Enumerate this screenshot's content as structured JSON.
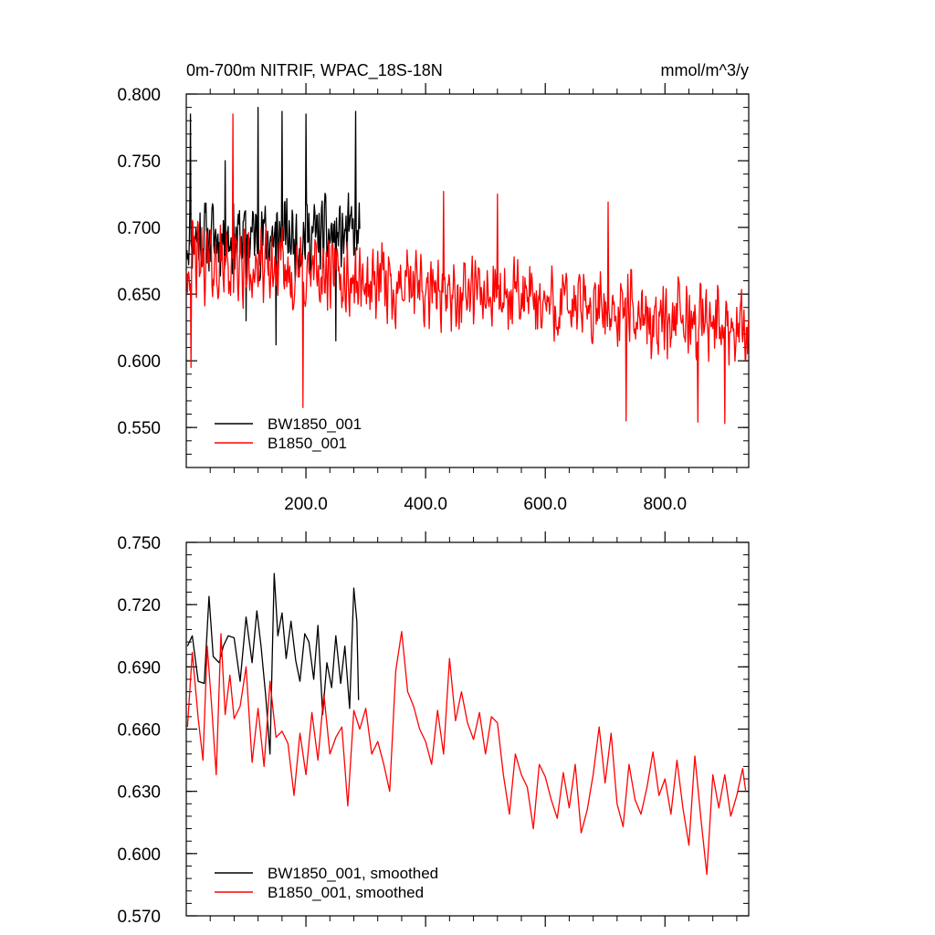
{
  "chart_data": [
    {
      "type": "line",
      "title": "0m-700m NITRIF, WPAC_18S-18N",
      "title_right": "mmol/m^3/y",
      "xlim": [
        0,
        940
      ],
      "ylim": [
        0.52,
        0.8
      ],
      "x_ticks": [
        200,
        400,
        600,
        800
      ],
      "x_tick_labels": [
        "200.0",
        "400.0",
        "600.0",
        "800.0"
      ],
      "y_ticks": [
        0.55,
        0.6,
        0.65,
        0.7,
        0.75,
        0.8
      ],
      "y_tick_labels": [
        "0.550",
        "0.600",
        "0.650",
        "0.700",
        "0.750",
        "0.800"
      ],
      "legend_position": "bottom-left",
      "series": [
        {
          "name": "BW1850_001",
          "color": "#000000",
          "x_start": 1,
          "x_step": 1,
          "baseline": 0.693,
          "noise": 0.035,
          "seed": 11,
          "n_points": 290,
          "peaks": [
            [
              7,
              0.785
            ],
            [
              65,
              0.75
            ],
            [
              120,
              0.79
            ],
            [
              160,
              0.787
            ],
            [
              200,
              0.785
            ],
            [
              283,
              0.787
            ]
          ],
          "troughs": [
            [
              100,
              0.63
            ],
            [
              150,
              0.612
            ],
            [
              250,
              0.615
            ]
          ]
        },
        {
          "name": "B1850_001",
          "color": "#ff0000",
          "x_start": 1,
          "x_step": 1,
          "baseline_start": 0.675,
          "baseline_end": 0.625,
          "noise": 0.035,
          "seed": 42,
          "n_points": 940,
          "peaks": [
            [
              78,
              0.785
            ],
            [
              430,
              0.727
            ],
            [
              520,
              0.725
            ],
            [
              705,
              0.719
            ]
          ],
          "troughs": [
            [
              8,
              0.595
            ],
            [
              195,
              0.565
            ],
            [
              735,
              0.555
            ],
            [
              855,
              0.554
            ],
            [
              900,
              0.553
            ]
          ]
        }
      ]
    },
    {
      "type": "line",
      "title": "",
      "xlim": [
        0,
        940
      ],
      "ylim": [
        0.57,
        0.75
      ],
      "x_ticks": [
        200,
        400,
        600,
        800
      ],
      "x_tick_labels": [],
      "y_ticks": [
        0.57,
        0.6,
        0.63,
        0.66,
        0.69,
        0.72,
        0.75
      ],
      "y_tick_labels": [
        "0.570",
        "0.600",
        "0.630",
        "0.660",
        "0.690",
        "0.720",
        "0.750"
      ],
      "legend_position": "bottom-left",
      "series": [
        {
          "name": "BW1850_001, smoothed",
          "color": "#000000",
          "x": [
            2,
            10,
            20,
            30,
            38,
            45,
            55,
            62,
            70,
            80,
            90,
            100,
            110,
            118,
            125,
            133,
            140,
            147,
            153,
            160,
            167,
            175,
            183,
            190,
            198,
            205,
            213,
            220,
            228,
            235,
            243,
            250,
            258,
            265,
            273,
            280,
            285,
            288
          ],
          "y": [
            0.7,
            0.705,
            0.683,
            0.682,
            0.724,
            0.695,
            0.692,
            0.7,
            0.705,
            0.704,
            0.683,
            0.714,
            0.692,
            0.717,
            0.7,
            0.675,
            0.648,
            0.735,
            0.705,
            0.716,
            0.694,
            0.712,
            0.693,
            0.683,
            0.706,
            0.702,
            0.684,
            0.71,
            0.667,
            0.692,
            0.68,
            0.705,
            0.682,
            0.7,
            0.67,
            0.728,
            0.712,
            0.674
          ]
        },
        {
          "name": "B1850_001, smoothed",
          "color": "#ff0000",
          "x": [
            2,
            10,
            20,
            28,
            35,
            42,
            50,
            58,
            65,
            73,
            80,
            90,
            100,
            110,
            120,
            130,
            140,
            150,
            160,
            170,
            180,
            190,
            200,
            210,
            220,
            230,
            240,
            250,
            260,
            270,
            280,
            290,
            300,
            310,
            320,
            330,
            340,
            350,
            360,
            370,
            380,
            390,
            400,
            410,
            420,
            430,
            440,
            450,
            460,
            470,
            480,
            490,
            500,
            510,
            520,
            530,
            540,
            550,
            560,
            570,
            580,
            590,
            600,
            610,
            620,
            630,
            640,
            650,
            660,
            670,
            680,
            690,
            700,
            710,
            720,
            730,
            740,
            750,
            760,
            770,
            780,
            790,
            800,
            810,
            820,
            830,
            840,
            850,
            860,
            870,
            880,
            890,
            900,
            910,
            920,
            930,
            935
          ],
          "y": [
            0.661,
            0.697,
            0.665,
            0.645,
            0.7,
            0.673,
            0.638,
            0.706,
            0.667,
            0.686,
            0.665,
            0.671,
            0.69,
            0.644,
            0.67,
            0.642,
            0.683,
            0.656,
            0.659,
            0.653,
            0.628,
            0.658,
            0.638,
            0.668,
            0.645,
            0.677,
            0.648,
            0.656,
            0.661,
            0.623,
            0.669,
            0.66,
            0.67,
            0.648,
            0.654,
            0.643,
            0.63,
            0.688,
            0.707,
            0.678,
            0.671,
            0.66,
            0.654,
            0.643,
            0.669,
            0.648,
            0.694,
            0.664,
            0.678,
            0.663,
            0.655,
            0.668,
            0.648,
            0.666,
            0.663,
            0.638,
            0.619,
            0.648,
            0.638,
            0.632,
            0.612,
            0.643,
            0.637,
            0.626,
            0.617,
            0.639,
            0.622,
            0.643,
            0.61,
            0.621,
            0.638,
            0.661,
            0.634,
            0.658,
            0.624,
            0.613,
            0.643,
            0.626,
            0.619,
            0.632,
            0.649,
            0.628,
            0.636,
            0.619,
            0.645,
            0.622,
            0.604,
            0.647,
            0.617,
            0.59,
            0.638,
            0.622,
            0.638,
            0.618,
            0.628,
            0.641,
            0.63
          ]
        }
      ]
    }
  ]
}
